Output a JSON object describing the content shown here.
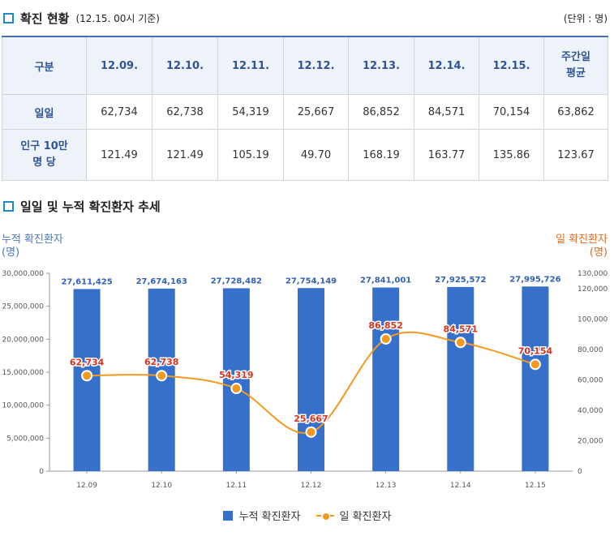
{
  "section1": {
    "title": "확진 현황",
    "subtitle": "(12.15. 00시 기준)",
    "unit": "(단위 : 명)"
  },
  "table": {
    "header_label": "구분",
    "columns": [
      "12.09.",
      "12.10.",
      "12.11.",
      "12.12.",
      "12.13.",
      "12.14.",
      "12.15.",
      "주간일\n평균"
    ],
    "rows": [
      {
        "label": "일일",
        "values": [
          "62,734",
          "62,738",
          "54,319",
          "25,667",
          "86,852",
          "84,571",
          "70,154",
          "63,862"
        ]
      },
      {
        "label": "인구 10만\n명 당",
        "values": [
          "121.49",
          "121.49",
          "105.19",
          "49.70",
          "168.19",
          "163.77",
          "135.86",
          "123.67"
        ]
      }
    ]
  },
  "section2": {
    "title": "일일 및 누적 확진환자 추세"
  },
  "axis_titles": {
    "left": "누적 확진환자",
    "left_unit": "(명)",
    "right": "일 확진환자",
    "right_unit": "(명)"
  },
  "legend": {
    "bar": "누적 확진환자",
    "line": "일 확진환자"
  },
  "colors": {
    "bar": "#3670cb",
    "line": "#f39a1e",
    "line_label": "#d9331f",
    "bar_label": "#2f62b8"
  },
  "chart_data": {
    "type": "bar",
    "categories": [
      "12.09",
      "12.10",
      "12.11",
      "12.12",
      "12.13",
      "12.14",
      "12.15"
    ],
    "series": [
      {
        "name": "누적 확진환자",
        "type": "bar",
        "axis": "left",
        "values": [
          27611425,
          27674163,
          27728482,
          27754149,
          27841001,
          27925572,
          27995726
        ],
        "labels": [
          "27,611,425",
          "27,674,163",
          "27,728,482",
          "27,754,149",
          "27,841,001",
          "27,925,572",
          "27,995,726"
        ]
      },
      {
        "name": "일 확진환자",
        "type": "line",
        "axis": "right",
        "values": [
          62734,
          62738,
          54319,
          25667,
          86852,
          84571,
          70154
        ],
        "labels": [
          "62,734",
          "62,738",
          "54,319",
          "25,667",
          "86,852",
          "84,571",
          "70,154"
        ]
      }
    ],
    "left_axis": {
      "ylim": [
        0,
        30000000
      ],
      "ticks": [
        "0",
        "5,000,000",
        "10,000,000",
        "15,000,000",
        "20,000,000",
        "25,000,000",
        "30,000,000"
      ]
    },
    "right_axis": {
      "ylim": [
        0,
        130000
      ],
      "ticks": [
        "0",
        "20,000",
        "40,000",
        "60,000",
        "80,000",
        "100,000",
        "120,000",
        "130,000"
      ],
      "tick_values": [
        0,
        20000,
        40000,
        60000,
        80000,
        100000,
        120000,
        130000
      ]
    }
  }
}
